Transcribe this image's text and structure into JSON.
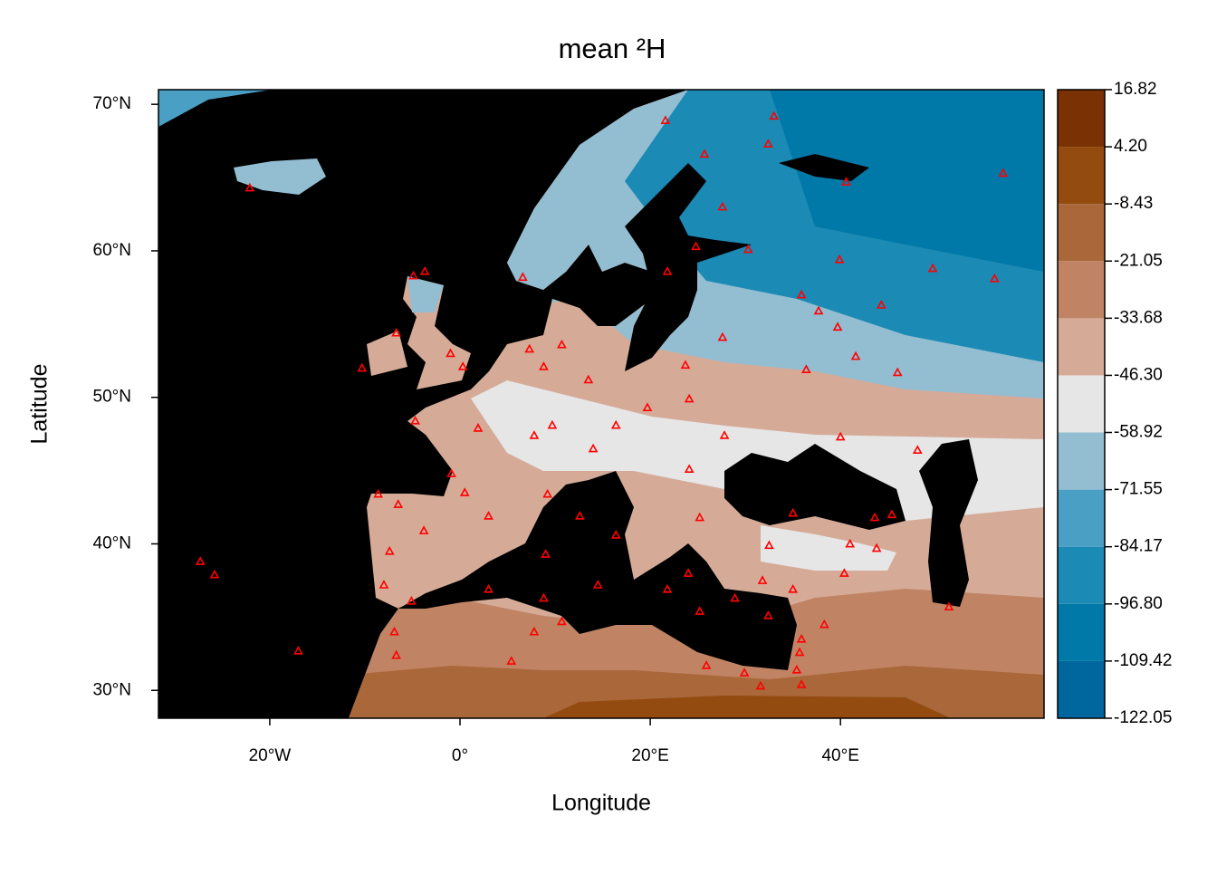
{
  "chart_data": {
    "type": "map",
    "title": "mean ²H",
    "x_label": "Longitude",
    "y_label": "Latitude",
    "xlim": [
      -31.7,
      61.4
    ],
    "ylim": [
      28.1,
      71.0
    ],
    "xticks": [
      {
        "value": -20,
        "label": "20°W"
      },
      {
        "value": 0,
        "label": "0°"
      },
      {
        "value": 20,
        "label": "20°E"
      },
      {
        "value": 40,
        "label": "40°E"
      }
    ],
    "yticks": [
      {
        "value": 30,
        "label": "30°N"
      },
      {
        "value": 40,
        "label": "40°N"
      },
      {
        "value": 50,
        "label": "50°N"
      },
      {
        "value": 60,
        "label": "60°N"
      },
      {
        "value": 70,
        "label": "70°N"
      }
    ],
    "levels": [
      -122.05,
      {
        "value": -109.42,
        "label": "-109.42"
      },
      {
        "value": -96.8,
        "label": "-96.80"
      },
      -84.17,
      -71.55,
      -58.92,
      {
        "value": -46.3,
        "label": "-46.30"
      },
      -33.68,
      -21.05,
      -8.43,
      {
        "value": 4.2,
        "label": "4.20"
      },
      16.82
    ],
    "level_colors": [
      "#00669e",
      "#0078a8",
      "#1b8ab4",
      "#4a9fc4",
      "#93bdd1",
      "#e6e6e6",
      "#d5ab98",
      "#c08465",
      "#a9673a",
      "#944b0f",
      "#7a3104"
    ],
    "color": "#ff0000",
    "x": [
      -22.1,
      21.6,
      33.0,
      32.4,
      25.7,
      40.6,
      57.1,
      27.6,
      24.8,
      30.3,
      39.9,
      49.7,
      56.2,
      21.8,
      35.9,
      44.3,
      37.7,
      39.7,
      41.6,
      46.0,
      36.4,
      27.6,
      23.7,
      24.1,
      40.0,
      48.1,
      -4.9,
      -3.7,
      6.6,
      -6.7,
      -10.3,
      -1.0,
      0.3,
      1.9,
      -4.7,
      -0.9,
      -8.6,
      -6.5,
      -3.8,
      -7.4,
      -8.0,
      -5.1,
      -6.7,
      -6.9,
      -17.0,
      -27.3,
      -25.8,
      0.5,
      3.0,
      7.3,
      8.8,
      10.7,
      13.5,
      7.8,
      9.7,
      16.4,
      19.7,
      14.0,
      9.2,
      12.6,
      16.4,
      9.0,
      8.8,
      10.7,
      3.0,
      5.4,
      7.8,
      14.5,
      21.8,
      24.0,
      27.8,
      24.1,
      25.2,
      32.5,
      35.0,
      41.0,
      43.8,
      40.4,
      31.8,
      28.9,
      35.0,
      38.3,
      35.9,
      35.7,
      35.4,
      35.9,
      31.6,
      29.9,
      25.9,
      25.2,
      51.4,
      43.6,
      45.4,
      32.4
    ],
    "values": [
      64.3,
      68.9,
      69.2,
      67.3,
      66.6,
      64.7,
      65.3,
      63.0,
      60.3,
      60.1,
      59.4,
      58.8,
      58.1,
      58.6,
      57.0,
      56.3,
      55.9,
      54.8,
      52.8,
      51.7,
      51.9,
      54.1,
      52.2,
      49.9,
      47.3,
      46.4,
      58.3,
      58.6,
      58.2,
      54.4,
      52.0,
      53.0,
      52.1,
      47.9,
      48.4,
      44.8,
      43.4,
      42.7,
      40.9,
      39.5,
      37.2,
      36.1,
      32.4,
      34.0,
      32.7,
      38.8,
      37.9,
      43.5,
      41.9,
      53.3,
      52.1,
      53.6,
      51.2,
      47.4,
      48.1,
      48.1,
      49.3,
      46.5,
      43.4,
      41.9,
      40.6,
      39.3,
      36.3,
      34.7,
      36.9,
      32.0,
      34.0,
      37.2,
      36.9,
      38.0,
      47.4,
      45.1,
      41.8,
      39.9,
      42.1,
      40.0,
      39.7,
      38.0,
      37.5,
      36.3,
      36.9,
      34.5,
      33.5,
      32.6,
      31.4,
      30.4,
      30.3,
      31.2,
      31.7,
      35.4,
      35.7,
      41.8,
      42.0,
      35.1
    ]
  }
}
